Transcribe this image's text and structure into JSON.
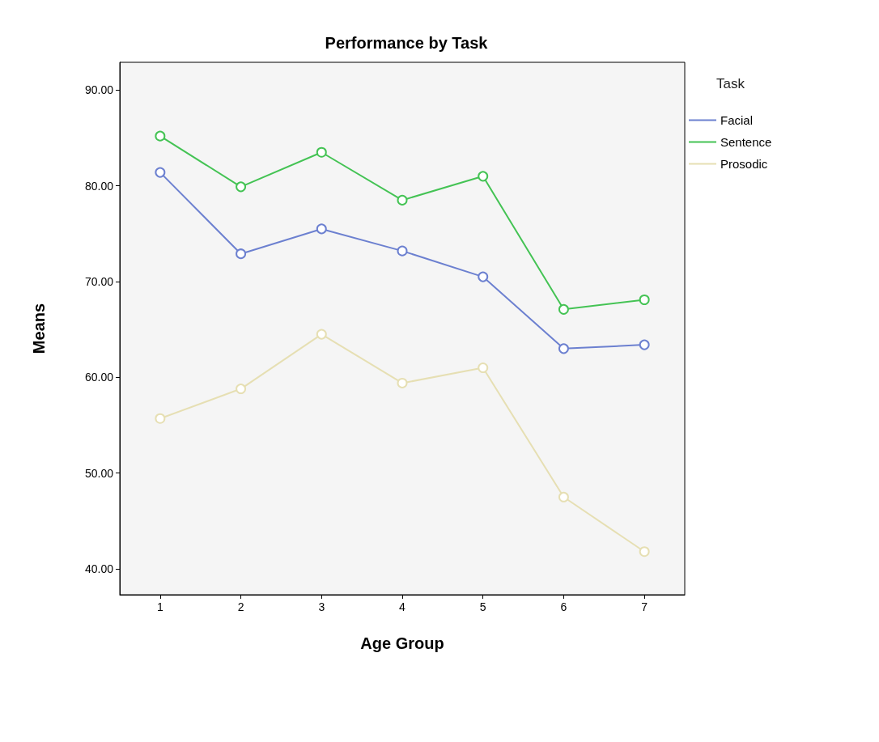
{
  "chart_data": {
    "type": "line",
    "title": "Performance by Task",
    "xlabel": "Age Group",
    "ylabel": "Means",
    "legend_title": "Task",
    "categories": [
      "1",
      "2",
      "3",
      "4",
      "5",
      "6",
      "7"
    ],
    "series": [
      {
        "name": "Facial",
        "color": "#6c80d0",
        "values": [
          81.4,
          72.9,
          75.5,
          73.2,
          70.5,
          63.0,
          63.4
        ]
      },
      {
        "name": "Sentence",
        "color": "#44c354",
        "values": [
          85.2,
          79.9,
          83.5,
          78.5,
          81.0,
          67.1,
          68.1
        ]
      },
      {
        "name": "Prosodic",
        "color": "#e6dfb3",
        "values": [
          55.7,
          58.8,
          64.5,
          59.4,
          61.0,
          47.5,
          41.8
        ]
      }
    ],
    "ylim": [
      37.3,
      92.9
    ],
    "yticks": [
      {
        "value": 40,
        "label": "40.00"
      },
      {
        "value": 50,
        "label": "50.00"
      },
      {
        "value": 60,
        "label": "60.00"
      },
      {
        "value": 70,
        "label": "70.00"
      },
      {
        "value": 80,
        "label": "80.00"
      },
      {
        "value": 90,
        "label": "90.00"
      }
    ],
    "grid": false,
    "legend": "top right",
    "marker": "circle",
    "line_style": "solid"
  }
}
